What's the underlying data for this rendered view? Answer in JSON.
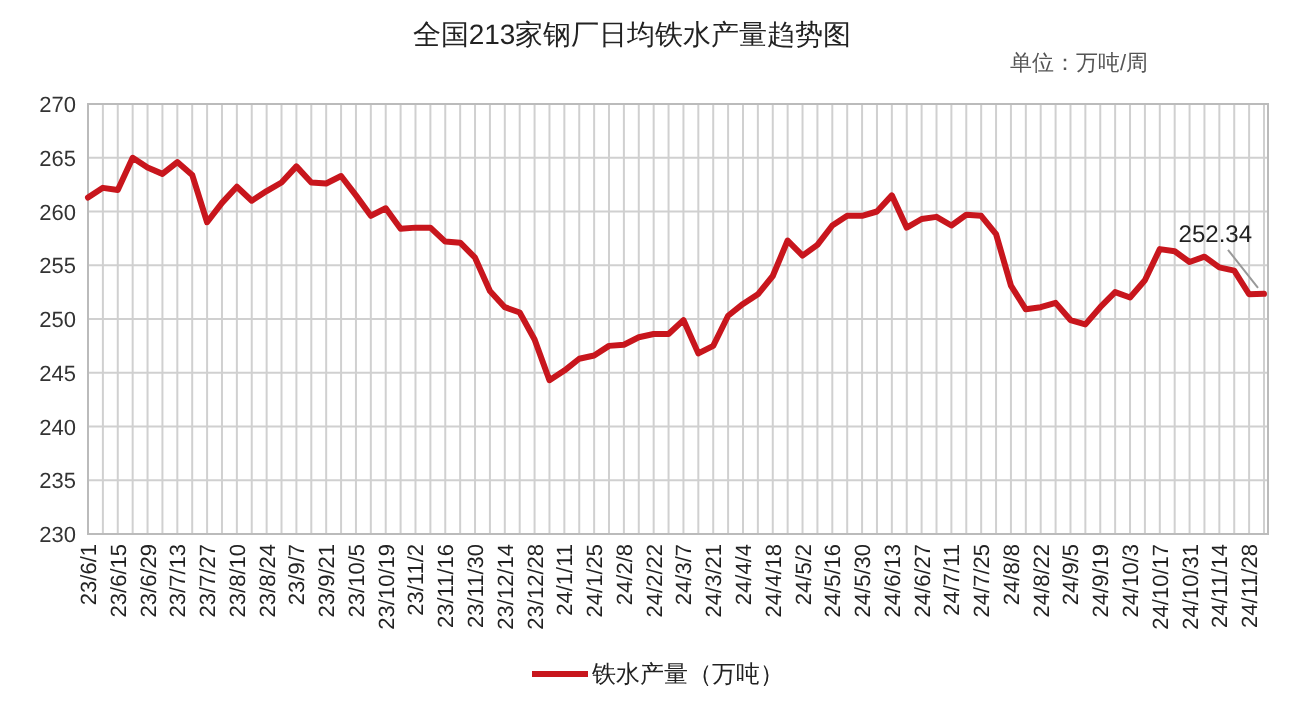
{
  "chart_data": {
    "type": "line",
    "title": "全国213家钢厂日均铁水产量趋势图",
    "subtitle": "单位：万吨/周",
    "categories": [
      "23/6/1",
      null,
      "23/6/15",
      null,
      "23/6/29",
      null,
      "23/7/13",
      null,
      "23/7/27",
      null,
      "23/8/10",
      null,
      "23/8/24",
      null,
      "23/9/7",
      null,
      "23/9/21",
      null,
      "23/10/5",
      null,
      "23/10/19",
      null,
      "23/11/2",
      null,
      "23/11/16",
      null,
      "23/11/30",
      null,
      "23/12/14",
      null,
      "23/12/28",
      null,
      "24/1/11",
      null,
      "24/1/25",
      null,
      "24/2/8",
      null,
      "24/2/22",
      null,
      "24/3/7",
      null,
      "24/3/21",
      null,
      "24/4/4",
      null,
      "24/4/18",
      null,
      "24/5/2",
      null,
      "24/5/16",
      null,
      "24/5/30",
      null,
      "24/6/13",
      null,
      "24/6/27",
      null,
      "24/7/11",
      null,
      "24/7/25",
      null,
      "24/8/8",
      null,
      "24/8/22",
      null,
      "24/9/5",
      null,
      "24/9/19",
      null,
      "24/10/3",
      null,
      "24/10/17",
      null,
      "24/10/31",
      null,
      "24/11/14",
      null,
      "24/11/28",
      null
    ],
    "series": [
      {
        "name": "铁水产量（万吨）",
        "color": "#c8161d",
        "values": [
          261.3,
          262.2,
          262.0,
          265.0,
          264.1,
          263.5,
          264.6,
          263.4,
          259.0,
          260.8,
          262.3,
          261.0,
          261.9,
          262.7,
          264.2,
          262.7,
          262.6,
          263.3,
          261.5,
          259.6,
          260.3,
          258.4,
          258.5,
          258.5,
          257.2,
          257.1,
          255.7,
          252.6,
          251.1,
          250.6,
          248.1,
          244.3,
          245.2,
          246.3,
          246.6,
          247.5,
          247.6,
          248.3,
          248.6,
          248.6,
          249.9,
          246.8,
          247.5,
          250.3,
          251.4,
          252.3,
          254.0,
          257.3,
          255.9,
          256.9,
          258.7,
          259.6,
          259.6,
          260.0,
          261.5,
          258.5,
          259.3,
          259.5,
          258.7,
          259.7,
          259.6,
          257.9,
          253.1,
          250.9,
          251.1,
          251.5,
          249.9,
          249.5,
          251.1,
          252.5,
          252.0,
          253.6,
          256.5,
          256.3,
          255.3,
          255.8,
          254.8,
          254.5,
          252.3,
          252.34
        ],
        "value_labels": [
          null,
          null,
          null,
          null,
          null,
          null,
          null,
          null,
          null,
          null,
          null,
          null,
          null,
          null,
          null,
          null,
          null,
          null,
          null,
          null,
          null,
          null,
          null,
          null,
          null,
          null,
          null,
          null,
          null,
          null,
          null,
          null,
          null,
          null,
          null,
          null,
          null,
          null,
          null,
          null,
          null,
          null,
          null,
          null,
          null,
          null,
          null,
          null,
          null,
          null,
          null,
          null,
          null,
          null,
          null,
          null,
          null,
          null,
          null,
          null,
          null,
          null,
          null,
          null,
          null,
          null,
          null,
          null,
          null,
          null,
          null,
          null,
          null,
          null,
          null,
          null,
          null,
          null,
          null,
          "252.34"
        ]
      }
    ],
    "ylim": [
      230,
      270
    ],
    "yticks": [
      230,
      235,
      240,
      245,
      250,
      255,
      260,
      265,
      270
    ],
    "grid": true,
    "legend": "bottom"
  }
}
